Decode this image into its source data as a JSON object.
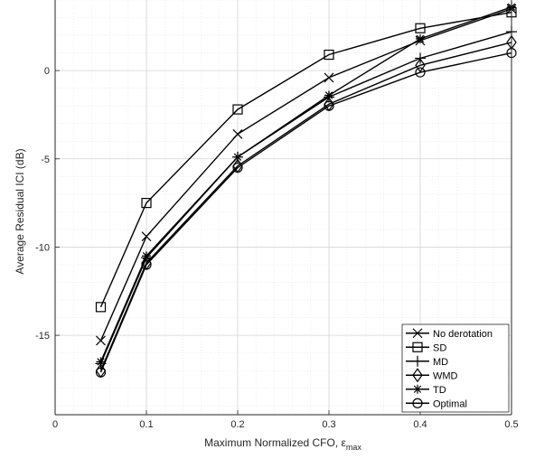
{
  "chart_data": {
    "type": "line",
    "xlabel": "Maximum Normalized CFO, ε",
    "xlabel_sub": "max",
    "ylabel": "Average Residual ICI (dB)",
    "xlim": [
      0,
      0.5
    ],
    "ylim": [
      -19.5,
      4
    ],
    "xticks": [
      0,
      0.1,
      0.2,
      0.3,
      0.4,
      0.5
    ],
    "xtick_labels": [
      "0",
      "0.1",
      "0.2",
      "0.3",
      "0.4",
      "0.5"
    ],
    "yticks": [
      0,
      -5,
      -10,
      -15
    ],
    "ytick_labels": [
      "0",
      "-5",
      "-10",
      "-15"
    ],
    "grid": true,
    "minor_grid": true,
    "legend_position": "bottom-right",
    "x": [
      0.05,
      0.1,
      0.2,
      0.3,
      0.4,
      0.5
    ],
    "series": [
      {
        "name": "No derotation",
        "marker": "x",
        "values": [
          -15.3,
          -9.4,
          -3.6,
          -0.4,
          1.7,
          3.5
        ]
      },
      {
        "name": "SD",
        "marker": "square",
        "values": [
          -13.4,
          -7.5,
          -2.2,
          0.9,
          2.4,
          3.3
        ]
      },
      {
        "name": "MD",
        "marker": "plus",
        "values": [
          -16.6,
          -10.6,
          -4.9,
          -1.5,
          0.7,
          2.2
        ]
      },
      {
        "name": "WMD",
        "marker": "diamond",
        "values": [
          -17.0,
          -10.9,
          -5.4,
          -1.9,
          0.3,
          1.6
        ]
      },
      {
        "name": "TD",
        "marker": "asterisk",
        "values": [
          -16.5,
          -10.5,
          -4.9,
          -1.4,
          1.8,
          3.6
        ]
      },
      {
        "name": "Optimal",
        "marker": "circle",
        "values": [
          -17.1,
          -11.0,
          -5.5,
          -2.0,
          -0.1,
          1.0
        ]
      }
    ]
  }
}
